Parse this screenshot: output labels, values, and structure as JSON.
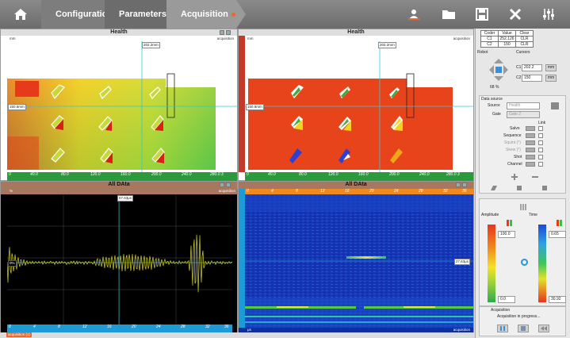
{
  "toolbar": {
    "breadcrumbs": [
      "Configuration",
      "Parameters",
      "Acquisition"
    ]
  },
  "health_left": {
    "title": "Health",
    "unit_tl": "mm",
    "mode_tr": "acquisition",
    "cursor_x": "202.2mm",
    "cursor_y": "150.6mm",
    "x_ticks": [
      "0",
      "40.0",
      "80.0",
      "120.0",
      "160.0",
      "200.0",
      "240.0",
      "280.0 3"
    ]
  },
  "health_right": {
    "title": "Health",
    "unit_tl": "mm",
    "mode_tr": "acquisition",
    "cursor_x": "202.2mm",
    "cursor_y": "150.6mm",
    "x_ticks": [
      "0",
      "40.0",
      "80.0",
      "120.0",
      "160.0",
      "200.0",
      "240.0",
      "280.0 3"
    ]
  },
  "alldata_left": {
    "title": "All DAta",
    "unit_tl": "%",
    "mode_tr": "acquisition",
    "cursor_x": "57.63μs",
    "cursor_y": "0%",
    "x_ticks": [
      "0",
      "4",
      "8",
      "12",
      "16",
      "20",
      "24",
      "28",
      "32",
      "36"
    ]
  },
  "alldata_right": {
    "title": "All DAta",
    "unit_bl": "μs",
    "mode_br": "acquisition",
    "cursor_y": "27.63μs",
    "x_ticks": [
      "0",
      "4",
      "8",
      "12",
      "16",
      "20",
      "24",
      "28",
      "32",
      "36"
    ]
  },
  "side": {
    "coder_headers": [
      "Coder",
      "Value",
      "Clear"
    ],
    "coder_rows": [
      [
        "C1",
        "252.126",
        "CLR"
      ],
      [
        "C2",
        "150",
        "CLR"
      ]
    ],
    "robot_label": "Robot",
    "cursors_label": "Cursors",
    "c1_label": "C1",
    "c1_value": "202.2",
    "c1_unit": "mm",
    "c2_label": "C2",
    "c2_value": "150",
    "c2_unit": "mm",
    "percent": "68 %",
    "data_source_label": "Data source",
    "source_label": "Source",
    "source_value": "Health",
    "gate_label": "Gate",
    "gate_value": "Gate 2",
    "link_label": "Link",
    "rows": [
      "Salvo",
      "Sequence",
      "Squint (°)",
      "Skew (°)",
      "Shot",
      "Channel"
    ],
    "amplitude_label": "Amplitude",
    "time_label": "Time",
    "amp_max": "100.0",
    "amp_min": "0.0",
    "time_max": "0.65",
    "time_min": "30.92",
    "acq_group": "Acquisition",
    "acq_status": "Acquisition in progress..."
  },
  "status": {
    "message": "acquisition (1)"
  },
  "colors": {
    "toolbar": "#767676",
    "accent": "#e8692f",
    "ruler_red": "#c0392b",
    "ruler_green": "#2b9a3d",
    "ruler_blue": "#1e9bd7",
    "cursor": "#2ecad4"
  }
}
